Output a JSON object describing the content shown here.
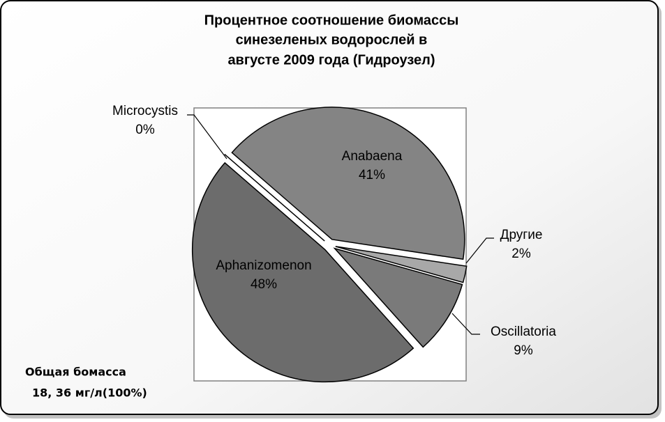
{
  "chart_data": {
    "type": "pie",
    "title": [
      "Процентное соотношение биомассы",
      "синезеленых водорослей в",
      "августе 2009 года (Гидроузел)"
    ],
    "categories": [
      "Anabaena",
      "Другие",
      "Oscillatoria",
      "Aphanizomenon",
      "Microcystis"
    ],
    "values": [
      41,
      2,
      9,
      48,
      0
    ],
    "value_labels": [
      "41%",
      "2%",
      "9%",
      "48%",
      "0%"
    ],
    "colors": [
      "#848484",
      "#a8a8a8",
      "#7a7a7a",
      "#6c6c6c",
      "#4a4a4a"
    ],
    "note": [
      "Общая бомасса",
      "18, 36 мг/л(100%)"
    ]
  }
}
